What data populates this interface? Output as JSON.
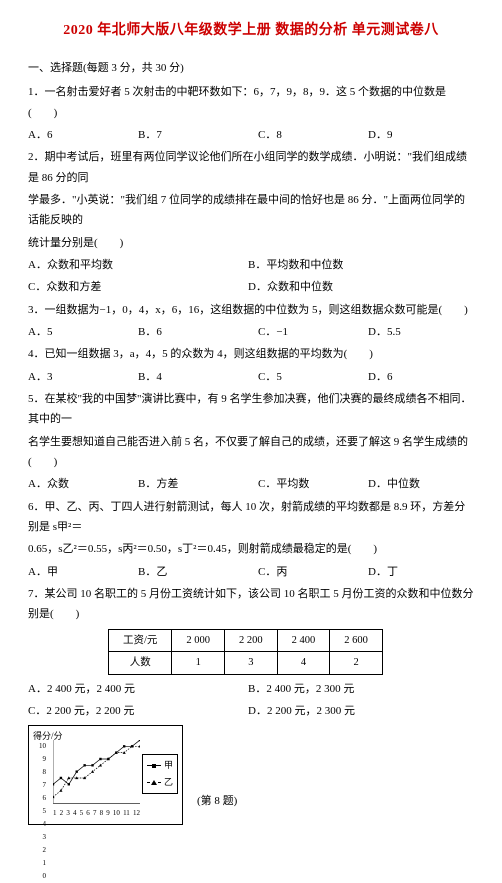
{
  "title": "2020 年北师大版八年级数学上册 数据的分析 单元测试卷八",
  "section1": "一、选择题(每题 3 分，共 30 分)",
  "q1": {
    "text": "1．一名射击爱好者 5 次射击的中靶环数如下：6，7，9，8，9．这 5 个数据的中位数是(　　)",
    "A": "A．6",
    "B": "B．7",
    "C": "C．8",
    "D": "D．9"
  },
  "q2": {
    "line1": "2．期中考试后，班里有两位同学议论他们所在小组同学的数学成绩．小明说：\"我们组成绩是 86 分的同",
    "line2": "学最多．\"小英说：\"我们组 7 位同学的成绩排在最中间的恰好也是 86 分．\"上面两位同学的话能反映的",
    "line3": "统计量分别是(　　)",
    "A": "A．众数和平均数",
    "B": "B．平均数和中位数",
    "C": "C．众数和方差",
    "D": "D．众数和中位数"
  },
  "q3": {
    "text": "3．一组数据为−1，0，4，x，6，16，这组数据的中位数为 5，则这组数据众数可能是(　　)",
    "A": "A．5",
    "B": "B．6",
    "C": "C．−1",
    "D": "D．5.5"
  },
  "q4": {
    "text": "4．已知一组数据 3，a，4，5 的众数为 4，则这组数据的平均数为(　　)",
    "A": "A．3",
    "B": "B．4",
    "C": "C．5",
    "D": "D．6"
  },
  "q5": {
    "line1": "5．在某校\"我的中国梦\"演讲比赛中，有 9 名学生参加决赛，他们决赛的最终成绩各不相同．其中的一",
    "line2": "名学生要想知道自己能否进入前 5 名，不仅要了解自己的成绩，还要了解这 9 名学生成绩的(　　)",
    "A": "A．众数",
    "B": "B．方差",
    "C": "C．平均数",
    "D": "D．中位数"
  },
  "q6": {
    "line1": "6．甲、乙、丙、丁四人进行射箭测试，每人 10 次，射箭成绩的平均数都是 8.9 环，方差分别是 s甲²＝",
    "line2": "0.65，s乙²＝0.55，s丙²＝0.50，s丁²＝0.45，则射箭成绩最稳定的是(　　)",
    "A": "A．甲",
    "B": "B．乙",
    "C": "C．丙",
    "D": "D．丁"
  },
  "q7": {
    "text": "7．某公司 10 名职工的 5 月份工资统计如下，该公司 10 名职工 5 月份工资的众数和中位数分别是(　　)",
    "table": {
      "headers": [
        "工资/元",
        "2 000",
        "2 200",
        "2 400",
        "2 600"
      ],
      "row": [
        "人数",
        "1",
        "3",
        "4",
        "2"
      ]
    },
    "A": "A．2 400 元，2 400 元",
    "B": "B．2 400 元，2 300 元",
    "C": "C．2 200 元，2 200 元",
    "D": "D．2 200 元，2 300 元"
  },
  "chart": {
    "ylabel": "得分/分",
    "y_ticks": [
      "10",
      "9",
      "8",
      "7",
      "6",
      "5",
      "4",
      "3",
      "2",
      "1",
      "0"
    ],
    "x_ticks": [
      "1",
      "2",
      "3",
      "4",
      "5",
      "6",
      "7",
      "8",
      "9",
      "10",
      "11",
      "12"
    ],
    "legend": {
      "a": "甲",
      "b": "乙"
    },
    "series_a": {
      "style": "solid",
      "marker": "square",
      "points": [
        [
          0,
          3
        ],
        [
          1,
          4
        ],
        [
          2,
          3
        ],
        [
          3,
          5
        ],
        [
          4,
          6
        ],
        [
          5,
          6
        ],
        [
          6,
          7
        ],
        [
          7,
          7
        ],
        [
          8,
          8
        ],
        [
          9,
          9
        ],
        [
          10,
          9
        ],
        [
          11,
          10
        ]
      ]
    },
    "series_b": {
      "style": "dash",
      "marker": "triangle",
      "points": [
        [
          0,
          1
        ],
        [
          1,
          2
        ],
        [
          2,
          4
        ],
        [
          3,
          4
        ],
        [
          4,
          4
        ],
        [
          5,
          5
        ],
        [
          6,
          6
        ],
        [
          7,
          7
        ],
        [
          8,
          8
        ],
        [
          9,
          8
        ],
        [
          10,
          9
        ],
        [
          11,
          9
        ]
      ]
    },
    "caption": "(第 8 题)"
  },
  "colors": {
    "title": "#cc0000",
    "text": "#000000",
    "bg": "#ffffff"
  }
}
